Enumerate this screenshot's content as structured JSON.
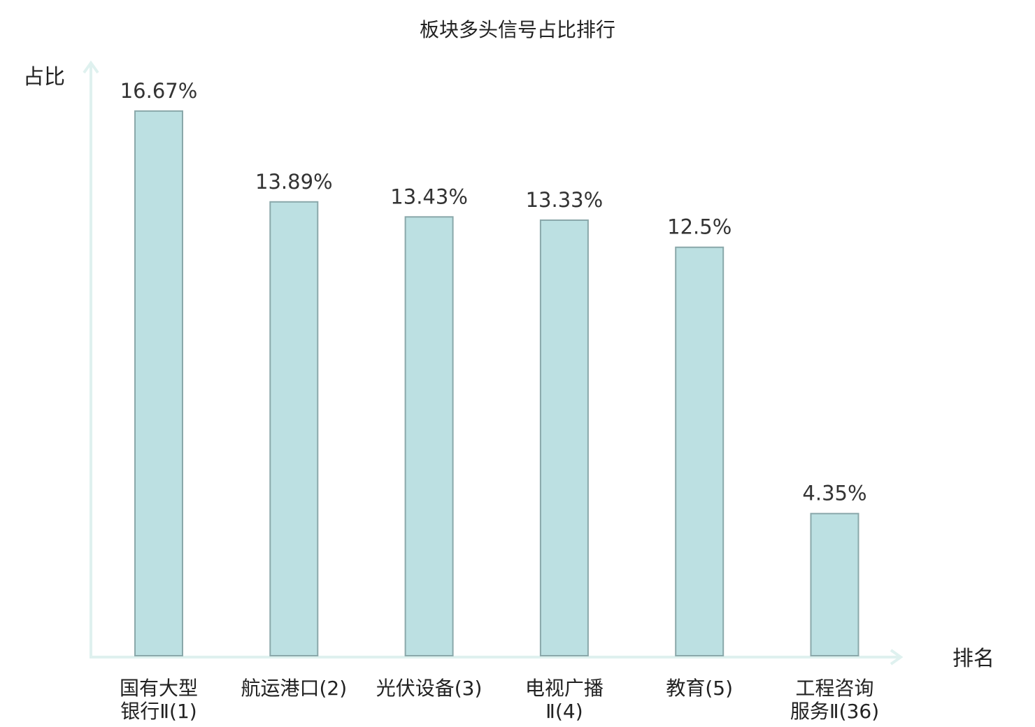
{
  "chart_data": {
    "type": "bar",
    "title": "板块多头信号占比排行",
    "ylabel": "占比",
    "xlabel": "排名",
    "ylim": [
      0,
      18.1
    ],
    "grid": false,
    "categories": [
      [
        "国有大型",
        "银行Ⅱ(1)"
      ],
      [
        "航运港口(2)"
      ],
      [
        "光伏设备(3)"
      ],
      [
        "电视广播",
        "Ⅱ(4)"
      ],
      [
        "教育(5)"
      ],
      [
        "工程咨询",
        "服务Ⅱ(36)"
      ]
    ],
    "values": [
      16.67,
      13.89,
      13.43,
      13.33,
      12.5,
      4.35
    ],
    "value_labels": [
      "16.67%",
      "13.89%",
      "13.43%",
      "13.33%",
      "12.5%",
      "4.35%"
    ],
    "highlight_index": 5,
    "colors": {
      "bar_fill": "#bce0e2",
      "bar_stroke": "#8aa8aa",
      "axis": "#dff1ef",
      "text": "#222222",
      "highlight_text": "#e0161d"
    }
  }
}
